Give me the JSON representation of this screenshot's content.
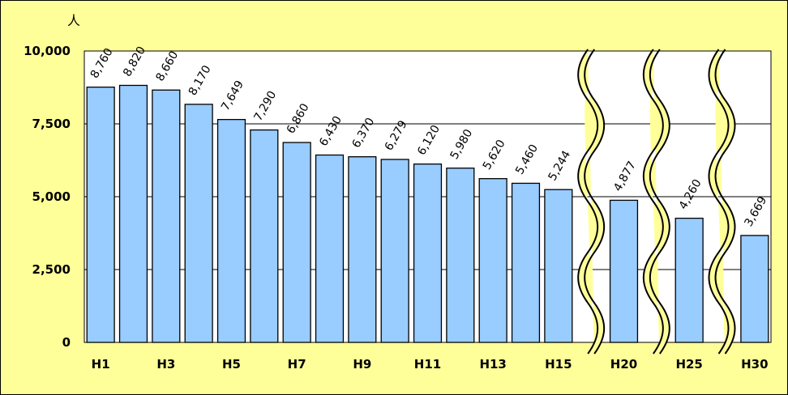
{
  "chart_data": {
    "type": "bar",
    "unit": "人",
    "categories": [
      "H1",
      "H2",
      "H3",
      "H4",
      "H5",
      "H6",
      "H7",
      "H8",
      "H9",
      "H10",
      "H11",
      "H12",
      "H13",
      "H14",
      "H15",
      "",
      "H20",
      "",
      "H25",
      "",
      "H30"
    ],
    "x_tick_labels": [
      "H1",
      "H3",
      "H5",
      "H7",
      "H9",
      "H11",
      "H13",
      "H15",
      "H20",
      "H25",
      "H30"
    ],
    "values": [
      8760,
      8820,
      8660,
      8170,
      7649,
      7290,
      6860,
      6430,
      6370,
      6279,
      6120,
      5980,
      5620,
      5460,
      5244,
      null,
      4877,
      null,
      4260,
      null,
      3669
    ],
    "data_labels": [
      "8,760",
      "8,820",
      "8,660",
      "8,170",
      "7,649",
      "7,290",
      "6,860",
      "6,430",
      "6,370",
      "6,279",
      "6,120",
      "5,980",
      "5,620",
      "5,460",
      "5,244",
      "",
      "4,877",
      "",
      "4,260",
      "",
      "3,669"
    ],
    "ylim": [
      0,
      10000
    ],
    "yticks": [
      0,
      2500,
      5000,
      7500,
      10000
    ],
    "ytick_labels": [
      "0",
      "2,500",
      "5,000",
      "7,500",
      "10,000"
    ],
    "axis_breaks_after": [
      "H15",
      "H20",
      "H25"
    ],
    "grid": true,
    "bar_color": "#99CCFF",
    "plot_background": "#FFFFFF",
    "page_background": "#FFFF99"
  }
}
